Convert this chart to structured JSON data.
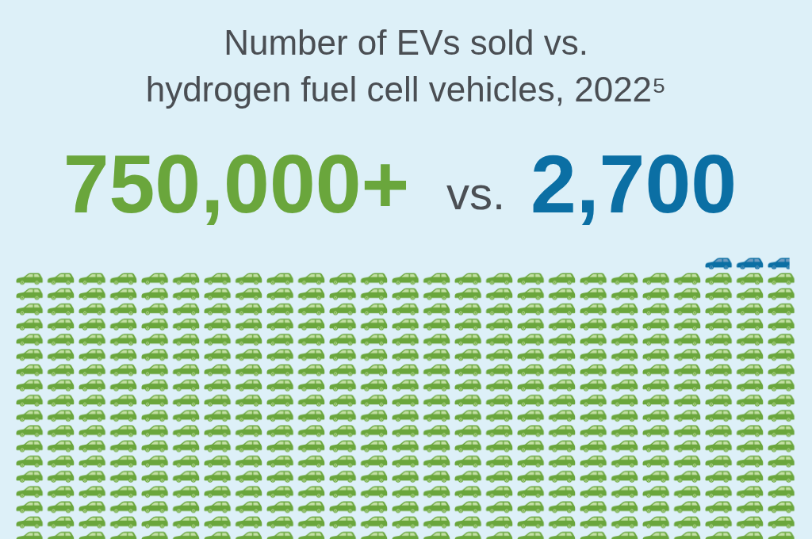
{
  "chart_data": {
    "type": "other",
    "title": "Number of EVs sold vs. hydrogen fuel cell vehicles, 2022⁵",
    "categories": [
      null,
      null
    ],
    "values": [
      750000,
      2700
    ],
    "value_labels": [
      "750,000+",
      "2,700"
    ],
    "colors": [
      "#6aa63c",
      "#0b6fa4"
    ],
    "annotations": [
      "vs."
    ]
  }
}
